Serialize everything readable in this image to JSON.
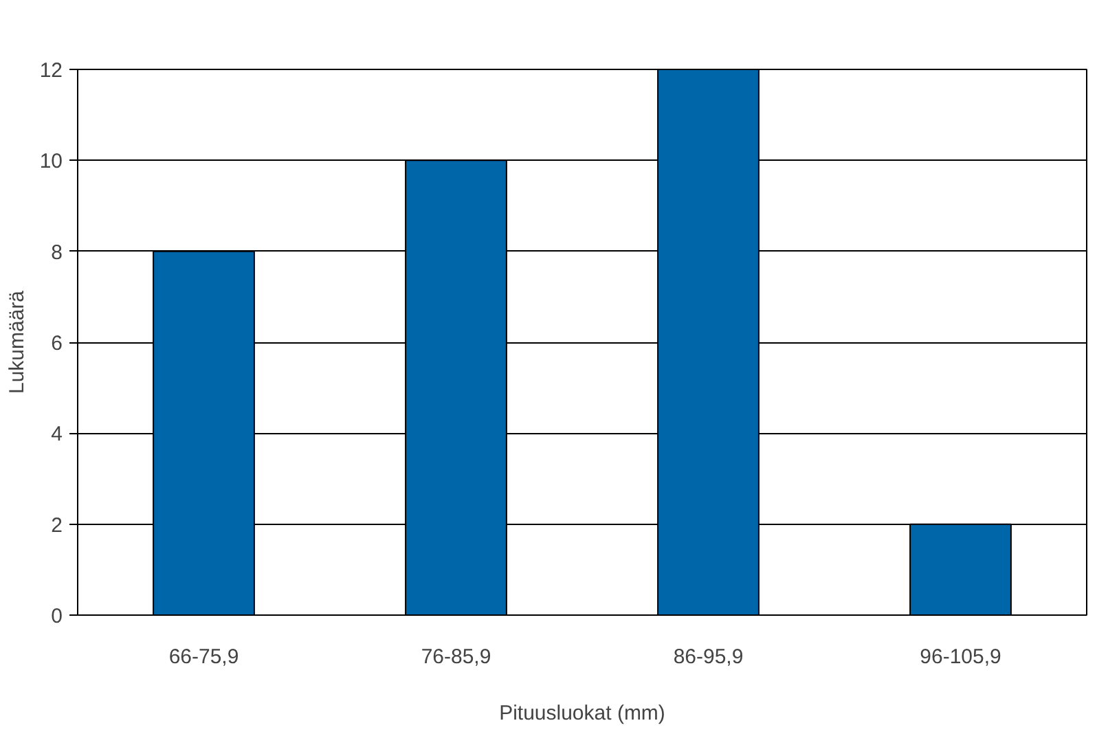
{
  "chart_data": {
    "type": "bar",
    "xlabel": "Pituusluokat (mm)",
    "ylabel": "Lukumäärä",
    "categories": [
      "66-75,9",
      "76-85,9",
      "86-95,9",
      "96-105,9"
    ],
    "values": [
      8,
      10,
      12,
      2
    ],
    "color": "#0066aa",
    "ylim": [
      0,
      12
    ],
    "yticks": [
      0,
      2,
      4,
      6,
      8,
      10,
      12
    ],
    "grid": "y"
  }
}
